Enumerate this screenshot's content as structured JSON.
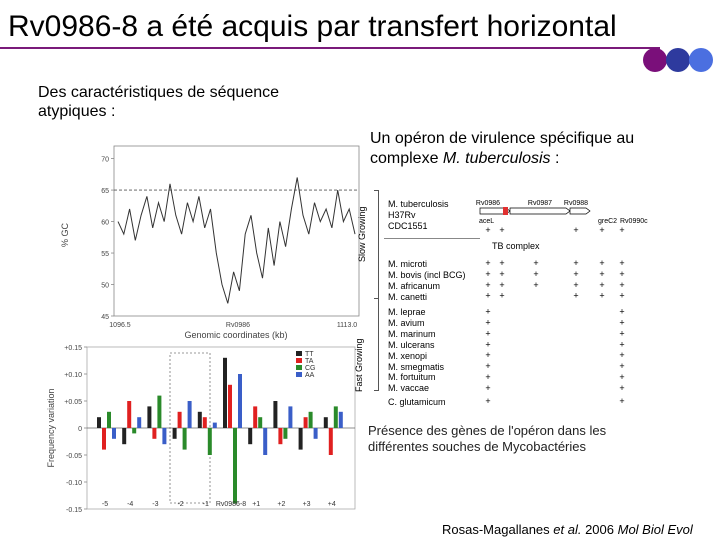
{
  "slide": {
    "title": "Rv0986-8 a été acquis par transfert horizontal",
    "dot_colors": [
      "#7a0f7a",
      "#2e3a9e",
      "#4b6fe0"
    ],
    "subtitle_line1": "Des caractéristiques de séquence",
    "subtitle_line2": "atypiques :",
    "operon_line1": "Un opéron de virulence spécifique au",
    "operon_line2_prefix": "complexe ",
    "operon_line2_italic": "M. tuberculosis",
    "operon_line2_suffix": " :",
    "caption_line1": "Présence des gènes de l'opéron dans les",
    "caption_line2": "différentes souches de Mycobactéries",
    "ref_authors": "Rosas-Magallanes ",
    "ref_etal": "et al.",
    "ref_rest": " 2006 ",
    "ref_journal": "Mol Biol Evol"
  },
  "gc_plot": {
    "ylabel": "% GC",
    "xlabel": "Genomic coordinates (kb)",
    "y_ticks": [
      "70",
      "65",
      "60",
      "55",
      "50",
      "45"
    ],
    "x_ticks": [
      "1096.5",
      "Rv0986",
      "1113.0"
    ],
    "y_values": [
      60,
      58,
      62,
      57,
      61,
      64,
      59,
      63,
      60,
      66,
      61,
      58,
      63,
      60,
      64,
      59,
      62,
      55,
      50,
      47,
      52,
      49,
      58,
      61,
      55,
      51,
      59,
      53,
      60,
      56,
      62,
      67,
      61,
      58,
      63,
      60,
      62,
      59,
      65,
      60,
      62,
      58
    ],
    "ylim": [
      45,
      72
    ],
    "reference_line": 65
  },
  "freq_plot": {
    "ylabel": "Frequency variation",
    "y_ticks": [
      "+0.15",
      "+0.10",
      "+0.05",
      "0",
      "-0.05",
      "-0.10",
      "-0.15"
    ],
    "x_ticks": [
      "-5",
      "-4",
      "-3",
      "-2",
      "-1",
      "Rv0986-8",
      "+1",
      "+2",
      "+3",
      "+4"
    ],
    "legend": [
      "TT",
      "TA",
      "CG",
      "AA"
    ],
    "legend_colors": [
      "#222222",
      "#e02020",
      "#2a8a2a",
      "#3a5ec8"
    ],
    "ylim": [
      -0.15,
      0.15
    ]
  },
  "table": {
    "gene_headers": [
      "Rv0986",
      "Rv0987",
      "Rv0988"
    ],
    "sub_headers": [
      "aceL",
      "greC2",
      "Rv0990c"
    ],
    "group_slow": "Slow Growing",
    "group_fast": "Fast Growing",
    "tb_complex": "TB complex",
    "species_tb": [
      "M. tuberculosis",
      "H37Rv",
      "CDC1551"
    ],
    "species_complex": [
      "M. microti",
      "M. bovis (incl BCG)",
      "M. africanum",
      "M. canetti"
    ],
    "species_other": [
      "M. leprae",
      "M. avium",
      "M. marinum",
      "M. ulcerans",
      "M. xenopi",
      "M. smegmatis",
      "M. fortuitum",
      "M. vaccae"
    ],
    "species_out": "C. glutamicum",
    "plus": "+"
  }
}
